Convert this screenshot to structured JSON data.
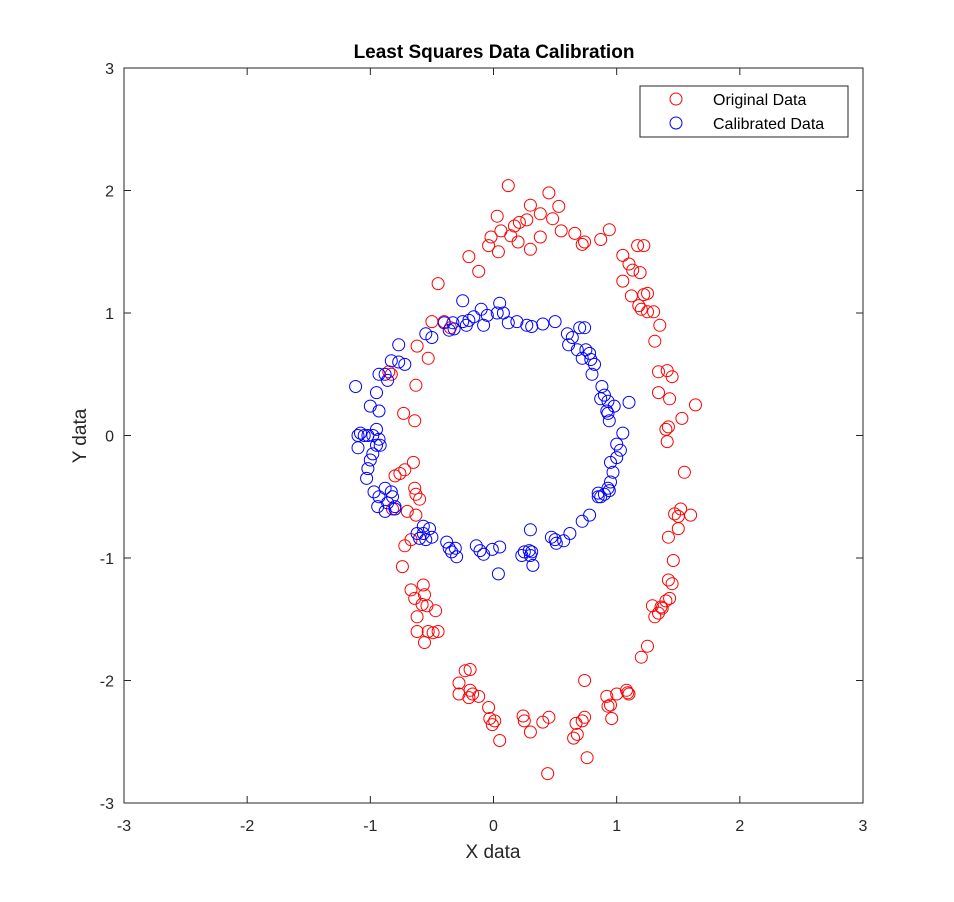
{
  "chart_data": {
    "type": "scatter",
    "title": "Least Squares Data Calibration",
    "xlabel": "X data",
    "ylabel": "Y data",
    "xlim": [
      -3,
      3
    ],
    "ylim": [
      -3,
      3
    ],
    "xticks": [
      -3,
      -2,
      -1,
      0,
      1,
      2,
      3
    ],
    "yticks": [
      -3,
      -2,
      -1,
      0,
      1,
      2,
      3
    ],
    "xtick_labels": [
      "-3",
      "-2",
      "-1",
      "0",
      "1",
      "2",
      "3"
    ],
    "ytick_labels": [
      "-3",
      "-2",
      "-1",
      "0",
      "1",
      "2",
      "3"
    ],
    "grid": false,
    "legend_position": "top-right",
    "marker": "open-circle",
    "series": [
      {
        "name": "Original Data",
        "color": "#ff0000",
        "points": [
          [
            0.12,
            2.04
          ],
          [
            0.45,
            1.98
          ],
          [
            0.3,
            1.88
          ],
          [
            0.53,
            1.87
          ],
          [
            0.38,
            1.81
          ],
          [
            0.48,
            1.77
          ],
          [
            0.03,
            1.79
          ],
          [
            0.27,
            1.76
          ],
          [
            0.21,
            1.74
          ],
          [
            0.17,
            1.71
          ],
          [
            0.06,
            1.67
          ],
          [
            -0.02,
            1.62
          ],
          [
            0.14,
            1.63
          ],
          [
            0.2,
            1.58
          ],
          [
            0.38,
            1.62
          ],
          [
            0.55,
            1.67
          ],
          [
            0.66,
            1.65
          ],
          [
            0.74,
            1.58
          ],
          [
            0.87,
            1.6
          ],
          [
            0.94,
            1.68
          ],
          [
            0.72,
            1.56
          ],
          [
            -0.04,
            1.55
          ],
          [
            0.04,
            1.5
          ],
          [
            0.3,
            1.52
          ],
          [
            -0.2,
            1.46
          ],
          [
            -0.12,
            1.34
          ],
          [
            -0.45,
            1.24
          ],
          [
            1.05,
            1.47
          ],
          [
            1.1,
            1.4
          ],
          [
            1.13,
            1.35
          ],
          [
            1.19,
            1.33
          ],
          [
            1.17,
            1.55
          ],
          [
            1.22,
            1.55
          ],
          [
            1.05,
            1.26
          ],
          [
            1.12,
            1.14
          ],
          [
            1.18,
            1.06
          ],
          [
            1.22,
            1.15
          ],
          [
            1.25,
            1.16
          ],
          [
            1.2,
            1.03
          ],
          [
            1.25,
            1.01
          ],
          [
            1.3,
            1.01
          ],
          [
            1.35,
            0.9
          ],
          [
            1.31,
            0.77
          ],
          [
            -0.4,
            0.93
          ],
          [
            -0.5,
            0.93
          ],
          [
            -0.35,
            0.88
          ],
          [
            -0.62,
            0.73
          ],
          [
            -0.53,
            0.63
          ],
          [
            -0.85,
            0.52
          ],
          [
            -0.83,
            0.5
          ],
          [
            -0.63,
            0.41
          ],
          [
            -0.73,
            0.18
          ],
          [
            -0.64,
            0.12
          ],
          [
            1.34,
            0.52
          ],
          [
            1.41,
            0.53
          ],
          [
            1.45,
            0.48
          ],
          [
            1.34,
            0.35
          ],
          [
            1.43,
            0.3
          ],
          [
            1.53,
            0.14
          ],
          [
            1.64,
            0.25
          ],
          [
            1.4,
            0.05
          ],
          [
            1.42,
            0.07
          ],
          [
            1.41,
            -0.05
          ],
          [
            -0.65,
            -0.22
          ],
          [
            -0.72,
            -0.28
          ],
          [
            -0.76,
            -0.31
          ],
          [
            -0.8,
            -0.33
          ],
          [
            -0.64,
            -0.43
          ],
          [
            -0.63,
            -0.48
          ],
          [
            -0.6,
            -0.52
          ],
          [
            -0.7,
            -0.62
          ],
          [
            -0.63,
            -0.65
          ],
          [
            -0.82,
            -0.6
          ],
          [
            1.55,
            -0.3
          ],
          [
            1.52,
            -0.6
          ],
          [
            1.5,
            -0.66
          ],
          [
            1.47,
            -0.64
          ],
          [
            1.6,
            -0.65
          ],
          [
            1.5,
            -0.76
          ],
          [
            1.42,
            -0.83
          ],
          [
            1.46,
            -1.02
          ],
          [
            -0.72,
            -0.9
          ],
          [
            -0.67,
            -0.85
          ],
          [
            -0.74,
            -1.07
          ],
          [
            -0.57,
            -1.22
          ],
          [
            -0.67,
            -1.26
          ],
          [
            -0.56,
            -1.3
          ],
          [
            -0.64,
            -1.33
          ],
          [
            -0.58,
            -1.38
          ],
          [
            -0.54,
            -1.39
          ],
          [
            -0.47,
            -1.43
          ],
          [
            -0.62,
            -1.48
          ],
          [
            -0.62,
            -1.6
          ],
          [
            -0.53,
            -1.6
          ],
          [
            -0.49,
            -1.61
          ],
          [
            -0.45,
            -1.6
          ],
          [
            -0.56,
            -1.69
          ],
          [
            1.42,
            -1.18
          ],
          [
            1.45,
            -1.21
          ],
          [
            1.4,
            -1.35
          ],
          [
            1.43,
            -1.33
          ],
          [
            1.36,
            -1.4
          ],
          [
            1.37,
            -1.41
          ],
          [
            1.34,
            -1.45
          ],
          [
            1.29,
            -1.39
          ],
          [
            1.31,
            -1.48
          ],
          [
            1.25,
            -1.72
          ],
          [
            1.2,
            -1.81
          ],
          [
            -0.19,
            -1.91
          ],
          [
            -0.23,
            -1.92
          ],
          [
            -0.28,
            -2.02
          ],
          [
            -0.28,
            -2.11
          ],
          [
            -0.19,
            -2.08
          ],
          [
            -0.17,
            -2.11
          ],
          [
            -0.2,
            -2.14
          ],
          [
            -0.12,
            -2.13
          ],
          [
            0.74,
            -2.0
          ],
          [
            0.92,
            -2.13
          ],
          [
            1.0,
            -2.11
          ],
          [
            1.08,
            -2.08
          ],
          [
            1.1,
            -2.11
          ],
          [
            1.09,
            -2.1
          ],
          [
            0.95,
            -2.2
          ],
          [
            0.93,
            -2.21
          ],
          [
            0.96,
            -2.31
          ],
          [
            -0.04,
            -2.22
          ],
          [
            -0.03,
            -2.31
          ],
          [
            0.01,
            -2.33
          ],
          [
            -0.01,
            -2.36
          ],
          [
            0.05,
            -2.49
          ],
          [
            0.24,
            -2.29
          ],
          [
            0.25,
            -2.33
          ],
          [
            0.3,
            -2.42
          ],
          [
            0.4,
            -2.34
          ],
          [
            0.45,
            -2.3
          ],
          [
            0.67,
            -2.35
          ],
          [
            0.72,
            -2.33
          ],
          [
            0.74,
            -2.3
          ],
          [
            0.68,
            -2.44
          ],
          [
            0.65,
            -2.47
          ],
          [
            0.76,
            -2.63
          ],
          [
            0.44,
            -2.76
          ]
        ]
      },
      {
        "name": "Calibrated Data",
        "color": "#0000ff",
        "points": [
          [
            -0.25,
            1.1
          ],
          [
            0.05,
            1.08
          ],
          [
            -0.1,
            1.03
          ],
          [
            0.03,
            1.0
          ],
          [
            0.08,
            1.0
          ],
          [
            -0.05,
            0.98
          ],
          [
            -0.16,
            0.97
          ],
          [
            -0.2,
            0.94
          ],
          [
            -0.25,
            0.93
          ],
          [
            -0.33,
            0.92
          ],
          [
            -0.4,
            0.92
          ],
          [
            -0.22,
            0.9
          ],
          [
            -0.08,
            0.9
          ],
          [
            0.12,
            0.92
          ],
          [
            0.19,
            0.93
          ],
          [
            0.27,
            0.9
          ],
          [
            0.31,
            0.89
          ],
          [
            0.4,
            0.91
          ],
          [
            0.5,
            0.93
          ],
          [
            -0.32,
            0.87
          ],
          [
            -0.36,
            0.86
          ],
          [
            -0.5,
            0.8
          ],
          [
            -0.55,
            0.83
          ],
          [
            0.6,
            0.83
          ],
          [
            0.64,
            0.8
          ],
          [
            0.7,
            0.88
          ],
          [
            0.74,
            0.88
          ],
          [
            0.61,
            0.74
          ],
          [
            0.68,
            0.7
          ],
          [
            0.75,
            0.7
          ],
          [
            0.78,
            0.67
          ],
          [
            0.72,
            0.63
          ],
          [
            0.79,
            0.62
          ],
          [
            0.82,
            0.58
          ],
          [
            0.8,
            0.5
          ],
          [
            -0.77,
            0.74
          ],
          [
            -0.83,
            0.61
          ],
          [
            -0.77,
            0.6
          ],
          [
            -0.72,
            0.58
          ],
          [
            -0.88,
            0.5
          ],
          [
            -0.93,
            0.5
          ],
          [
            -0.86,
            0.45
          ],
          [
            -0.95,
            0.35
          ],
          [
            -1.12,
            0.4
          ],
          [
            -1.0,
            0.24
          ],
          [
            -0.93,
            0.2
          ],
          [
            0.88,
            0.4
          ],
          [
            0.9,
            0.33
          ],
          [
            0.87,
            0.3
          ],
          [
            0.93,
            0.28
          ],
          [
            0.98,
            0.24
          ],
          [
            1.1,
            0.27
          ],
          [
            0.92,
            0.2
          ],
          [
            0.93,
            0.18
          ],
          [
            0.94,
            0.12
          ],
          [
            -1.08,
            0.02
          ],
          [
            -1.1,
            0.0
          ],
          [
            -1.05,
            0.0
          ],
          [
            -1.02,
            0.0
          ],
          [
            -0.98,
            0.0
          ],
          [
            -0.95,
            0.05
          ],
          [
            -0.93,
            -0.03
          ],
          [
            -0.95,
            -0.08
          ],
          [
            -0.92,
            -0.08
          ],
          [
            -1.1,
            -0.1
          ],
          [
            -0.98,
            -0.15
          ],
          [
            -1.0,
            -0.2
          ],
          [
            -1.02,
            -0.27
          ],
          [
            -1.03,
            -0.35
          ],
          [
            1.05,
            0.02
          ],
          [
            1.0,
            -0.07
          ],
          [
            1.03,
            -0.12
          ],
          [
            1.0,
            -0.18
          ],
          [
            0.95,
            -0.22
          ],
          [
            0.97,
            -0.3
          ],
          [
            0.95,
            -0.38
          ],
          [
            0.93,
            -0.43
          ],
          [
            0.94,
            -0.45
          ],
          [
            0.9,
            -0.48
          ],
          [
            0.87,
            -0.5
          ],
          [
            0.85,
            -0.5
          ],
          [
            0.85,
            -0.47
          ],
          [
            0.78,
            -0.65
          ],
          [
            -0.88,
            -0.43
          ],
          [
            -0.83,
            -0.46
          ],
          [
            -0.97,
            -0.46
          ],
          [
            -0.93,
            -0.5
          ],
          [
            -0.82,
            -0.5
          ],
          [
            -0.86,
            -0.55
          ],
          [
            -0.8,
            -0.58
          ],
          [
            -0.94,
            -0.58
          ],
          [
            -0.88,
            -0.62
          ],
          [
            -0.8,
            -0.6
          ],
          [
            -0.57,
            -0.74
          ],
          [
            -0.52,
            -0.76
          ],
          [
            -0.57,
            -0.8
          ],
          [
            -0.62,
            -0.8
          ],
          [
            -0.6,
            -0.84
          ],
          [
            -0.55,
            -0.85
          ],
          [
            -0.5,
            -0.83
          ],
          [
            -0.38,
            -0.87
          ],
          [
            -0.36,
            -0.92
          ],
          [
            -0.31,
            -0.92
          ],
          [
            -0.34,
            -0.95
          ],
          [
            -0.3,
            -0.99
          ],
          [
            0.72,
            -0.7
          ],
          [
            0.62,
            -0.8
          ],
          [
            0.47,
            -0.83
          ],
          [
            0.5,
            -0.85
          ],
          [
            0.51,
            -0.88
          ],
          [
            0.57,
            -0.86
          ],
          [
            0.3,
            -0.77
          ],
          [
            -0.14,
            -0.9
          ],
          [
            -0.11,
            -0.94
          ],
          [
            -0.08,
            -0.97
          ],
          [
            -0.01,
            -0.93
          ],
          [
            0.05,
            -0.91
          ],
          [
            0.25,
            -0.95
          ],
          [
            0.29,
            -0.94
          ],
          [
            0.31,
            -0.95
          ],
          [
            0.3,
            -0.98
          ],
          [
            0.23,
            -0.98
          ],
          [
            0.32,
            -1.06
          ],
          [
            0.04,
            -1.13
          ]
        ]
      }
    ]
  }
}
